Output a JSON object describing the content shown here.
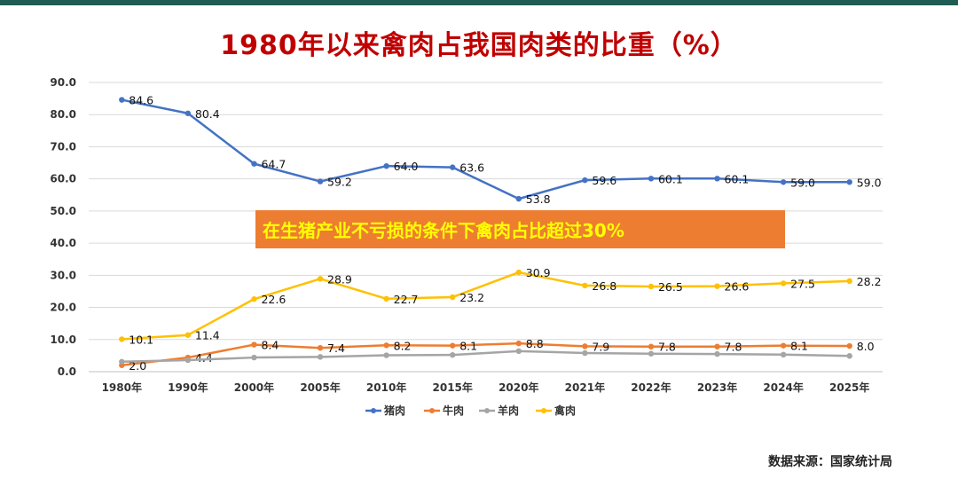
{
  "chart_data": {
    "type": "line",
    "title": "1980年以来禽肉占我国肉类的比重（%）",
    "categories": [
      "1980年",
      "1990年",
      "2000年",
      "2005年",
      "2010年",
      "2015年",
      "2020年",
      "2021年",
      "2022年",
      "2023年",
      "2024年",
      "2025年"
    ],
    "ylim": [
      0,
      90
    ],
    "yticks": [
      "0.0",
      "10.0",
      "20.0",
      "30.0",
      "40.0",
      "50.0",
      "60.0",
      "70.0",
      "80.0",
      "90.0"
    ],
    "grid": true,
    "legend_position": "bottom",
    "series": [
      {
        "name": "猪肉",
        "color": "#4472c4",
        "values": [
          84.6,
          80.4,
          64.7,
          59.2,
          64.0,
          63.6,
          53.8,
          59.6,
          60.1,
          60.1,
          59.0,
          59.0
        ],
        "labels": [
          "84.6",
          "80.4",
          "64.7",
          "59.2",
          "64.0",
          "63.6",
          "53.8",
          "59.6",
          "60.1",
          "60.1",
          "59.0",
          "59.0"
        ],
        "highlight_index": 6
      },
      {
        "name": "牛肉",
        "color": "#ed7d31",
        "values": [
          2.0,
          4.4,
          8.4,
          7.4,
          8.2,
          8.1,
          8.8,
          7.9,
          7.8,
          7.8,
          8.1,
          8.0
        ],
        "labels": [
          "2.0",
          "4.4",
          "8.4",
          "7.4",
          "8.2",
          "8.1",
          "8.8",
          "7.9",
          "7.8",
          "7.8",
          "8.1",
          "8.0"
        ]
      },
      {
        "name": "羊肉",
        "color": "#a5a5a5",
        "values": [
          3.1,
          3.6,
          4.4,
          4.6,
          5.1,
          5.2,
          6.4,
          5.8,
          5.6,
          5.5,
          5.3,
          4.9
        ],
        "labels": []
      },
      {
        "name": "禽肉",
        "color": "#ffc000",
        "values": [
          10.1,
          11.4,
          22.6,
          28.9,
          22.7,
          23.2,
          30.9,
          26.8,
          26.5,
          26.6,
          27.5,
          28.2
        ],
        "labels": [
          "10.1",
          "11.4",
          "22.6",
          "28.9",
          "22.7",
          "23.2",
          "30.9",
          "26.8",
          "26.5",
          "26.6",
          "27.5",
          "28.2"
        ],
        "highlight_index": 6
      }
    ],
    "annotation": "在生猪产业不亏损的条件下禽肉占比超过30%",
    "annotation_bg": "#ed7d31",
    "annotation_color": "#ffff00",
    "highlight_color": "#c00000"
  },
  "source": "数据来源：国家统计局"
}
